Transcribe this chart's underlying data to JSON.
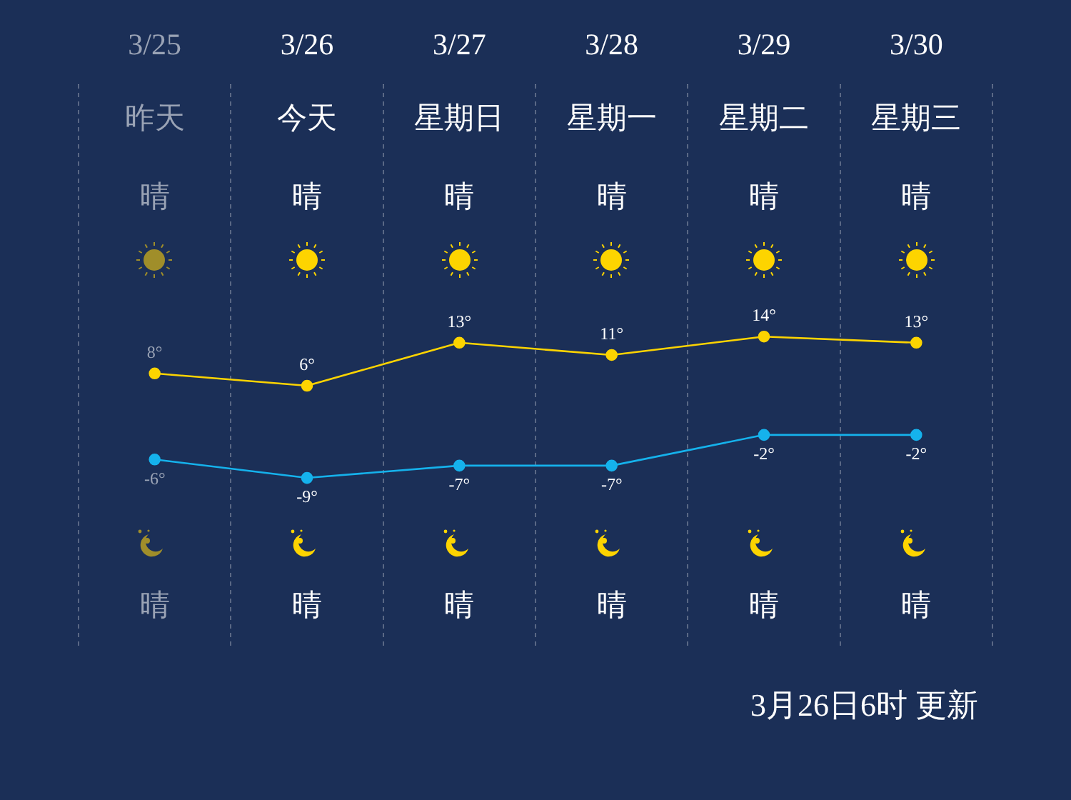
{
  "chart_data": {
    "type": "line",
    "categories": [
      "3/25",
      "3/26",
      "3/27",
      "3/28",
      "3/29",
      "3/30"
    ],
    "series": [
      {
        "color": "#fdd400",
        "values": [
          8,
          6,
          13,
          11,
          14,
          13
        ],
        "value_labels": [
          "8°",
          "6°",
          "13°",
          "11°",
          "14°",
          "13°"
        ]
      },
      {
        "color": "#15b2ec",
        "values": [
          -6,
          -9,
          -7,
          -7,
          -2,
          -2
        ],
        "value_labels": [
          "-6°",
          "-9°",
          "-7°",
          "-7°",
          "-2°",
          "-2°"
        ]
      }
    ],
    "ylim": [
      -37,
      55
    ],
    "grid": "x",
    "legend": false,
    "tick_labels": "x",
    "marker": "circle",
    "line_style": "solid",
    "annotations": [
      "昨天",
      "今天",
      "星期日",
      "星期一",
      "星期二",
      "星期三",
      "晴",
      "晴",
      "晴",
      "晴",
      "晴",
      "晴",
      "晴",
      "晴",
      "晴",
      "晴",
      "晴",
      "晴",
      "3月26日6时 更新"
    ]
  }
}
